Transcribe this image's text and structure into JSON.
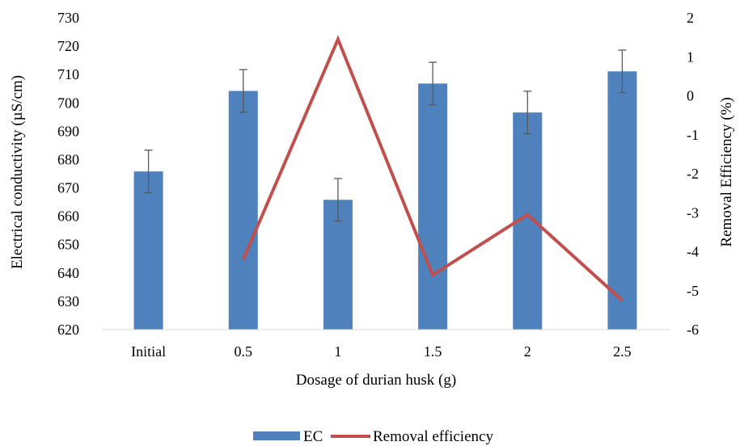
{
  "chart_data": {
    "type": "bar",
    "title": "",
    "categories": [
      "Initial",
      "0.5",
      "1",
      "1.5",
      "2",
      "2.5"
    ],
    "xlabel": "Dosage of durian husk (g)",
    "ylabel": "Electrical conductivity (µS/cm)",
    "y2label": "Removal Efficiency (%)",
    "ylim": [
      620,
      730
    ],
    "y2lim": [
      -6,
      2
    ],
    "yticks": [
      "620",
      "630",
      "640",
      "650",
      "660",
      "670",
      "680",
      "690",
      "700",
      "710",
      "720",
      "730"
    ],
    "y2ticks": [
      "-6",
      "-5",
      "-4",
      "-3",
      "-2",
      "-1",
      "0",
      "1",
      "2"
    ],
    "grid": false,
    "legend_position": "bottom",
    "series": [
      {
        "name": "EC",
        "type": "bar",
        "axis": "left",
        "color": "#4F81BD",
        "values": [
          675.8,
          704.2,
          665.8,
          706.8,
          696.6,
          711.1
        ],
        "error": [
          7.5,
          7.5,
          7.5,
          7.5,
          7.5,
          7.5
        ]
      },
      {
        "name": "Removal efficiency",
        "type": "line",
        "axis": "right",
        "color": "#C0504D",
        "values": [
          null,
          -4.2,
          1.45,
          -4.6,
          -3.05,
          -5.25
        ]
      }
    ]
  }
}
